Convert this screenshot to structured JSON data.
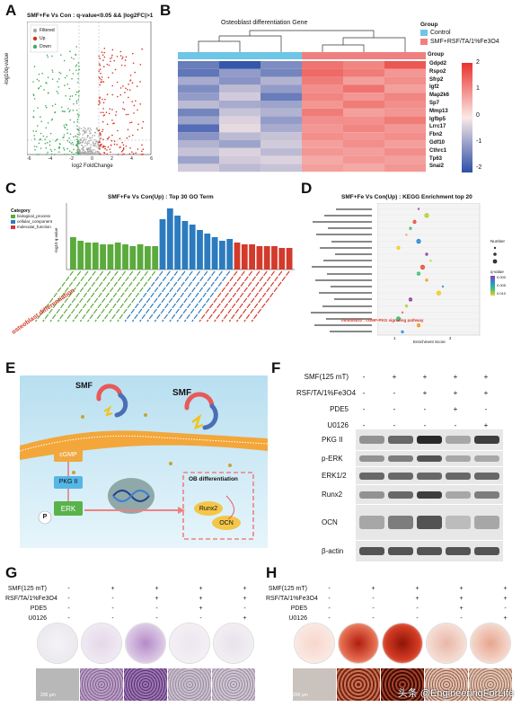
{
  "panels": {
    "a": "A",
    "b": "B",
    "c": "C",
    "d": "D",
    "e": "E",
    "f": "F",
    "g": "G",
    "h": "H"
  },
  "colors": {
    "up": "#d7301f",
    "down": "#41ab5d",
    "filtered": "#aaaaaa",
    "control": "#6ec6e6",
    "treat": "#f08080",
    "heat_high": "#e8332e",
    "heat_low": "#2b4fa8",
    "bar_green": "#5aaa3c",
    "bar_blue": "#2c7bbf",
    "bar_red": "#d33a2c"
  },
  "volcano": {
    "title": "SMF+Fe Vs Con : q-value<0.05 && |log2FC|>1",
    "ylabel": "-log10q-value",
    "xlabel": "log2 FoldChange",
    "xticks": [
      "-6",
      "-4",
      "-2",
      "0",
      "2",
      "4",
      "6"
    ],
    "legend": [
      "Filtered",
      "Up",
      "Down"
    ]
  },
  "heatmap": {
    "title": "Osteoblast differentiation Gene",
    "group_title": "Group",
    "legend": [
      "Control",
      "SMF+RSF/TA/1%Fe3O4"
    ],
    "row_group_label": "Group",
    "genes": [
      "Gdpd2",
      "Rspo2",
      "Sfrp2",
      "Igf2",
      "Map2k6",
      "Sp7",
      "Mmp13",
      "Igfbp5",
      "Lrrc17",
      "Fbn2",
      "Gdf10",
      "Cthrc1",
      "Tp63",
      "Snai2"
    ],
    "scale_ticks": [
      "2",
      "1",
      "0",
      "-1",
      "-2"
    ],
    "values": [
      [
        -1.4,
        -1.9,
        -1.2,
        1.3,
        1.1,
        1.6
      ],
      [
        -1.5,
        -1.0,
        -1.3,
        1.4,
        1.2,
        0.9
      ],
      [
        -0.8,
        -1.1,
        -0.7,
        1.2,
        0.8,
        1.0
      ],
      [
        -1.2,
        -0.6,
        -1.0,
        1.0,
        1.3,
        0.8
      ],
      [
        -1.0,
        -0.4,
        -1.4,
        1.1,
        0.9,
        1.1
      ],
      [
        -0.6,
        -0.8,
        -0.9,
        0.9,
        1.2,
        1.0
      ],
      [
        -1.3,
        -0.5,
        -0.7,
        1.2,
        0.8,
        0.9
      ],
      [
        -0.9,
        -0.3,
        -1.0,
        1.0,
        1.0,
        1.2
      ],
      [
        -1.6,
        -0.2,
        -0.8,
        0.9,
        1.1,
        0.9
      ],
      [
        -1.1,
        -0.6,
        -0.5,
        1.0,
        0.9,
        1.0
      ],
      [
        -0.7,
        -0.9,
        -0.4,
        0.8,
        1.0,
        0.8
      ],
      [
        -0.5,
        -0.3,
        -0.6,
        0.9,
        0.8,
        1.0
      ],
      [
        -0.9,
        -0.4,
        -0.3,
        0.7,
        0.9,
        0.8
      ],
      [
        -0.4,
        -0.6,
        -0.5,
        0.8,
        0.7,
        0.9
      ]
    ]
  },
  "chart_data": [
    {
      "type": "bar",
      "title": "SMF+Fe Vs Con(Up) : Top 30 GO Term",
      "ylabel": "-log10 q-value",
      "legend_title": "Category",
      "legend": [
        "biological_process",
        "cellular_component",
        "molecular_function"
      ],
      "highlight": "osteoblast differentiation",
      "series": [
        {
          "name": "biological_process",
          "values": [
            1.8,
            1.6,
            1.5,
            1.5,
            1.4,
            1.4,
            1.5,
            1.4,
            1.3,
            1.4,
            1.3,
            1.3
          ]
        },
        {
          "name": "cellular_component",
          "values": [
            2.8,
            3.4,
            3.0,
            2.7,
            2.5,
            2.2,
            2.0,
            1.8,
            1.6,
            1.7
          ]
        },
        {
          "name": "molecular_function",
          "values": [
            1.5,
            1.4,
            1.4,
            1.3,
            1.3,
            1.3,
            1.2,
            1.2
          ]
        }
      ]
    },
    {
      "type": "scatter",
      "title": "SMF+Fe Vs Con(Up) : KEGG Enrichment top 20",
      "xlabel": "Enrichment Score",
      "highlight": "mmu04022 : cGMP-PKG signaling pathway",
      "size_legend_title": "Number",
      "color_legend_title": "q-value",
      "color_legend_ticks": [
        "0.000",
        "0.005",
        "0.010"
      ],
      "x_ticks": [
        "1",
        "2"
      ],
      "points": [
        {
          "x": 1.2,
          "y": 20
        },
        {
          "x": 1.3,
          "y": 19
        },
        {
          "x": 1.15,
          "y": 18
        },
        {
          "x": 1.1,
          "y": 17
        },
        {
          "x": 1.05,
          "y": 16
        },
        {
          "x": 1.2,
          "y": 15
        },
        {
          "x": 0.95,
          "y": 14
        },
        {
          "x": 1.3,
          "y": 13
        },
        {
          "x": 1.35,
          "y": 12
        },
        {
          "x": 1.25,
          "y": 11
        },
        {
          "x": 1.2,
          "y": 10
        },
        {
          "x": 1.3,
          "y": 9
        },
        {
          "x": 1.5,
          "y": 8
        },
        {
          "x": 1.45,
          "y": 7
        },
        {
          "x": 1.1,
          "y": 6
        },
        {
          "x": 1.05,
          "y": 5
        },
        {
          "x": 1.0,
          "y": 4
        },
        {
          "x": 0.95,
          "y": 3
        },
        {
          "x": 1.2,
          "y": 2
        },
        {
          "x": 1.0,
          "y": 1
        }
      ]
    }
  ],
  "schematic": {
    "smf1": "SMF",
    "smf2": "SMF",
    "cgmp": "cGMP",
    "pkg": "PKG II",
    "erk": "ERK",
    "p": "P",
    "ob_title": "OB differentiation",
    "runx2": "Runx2",
    "ocn": "OCN"
  },
  "western": {
    "conditions": [
      "SMF(125 mT)",
      "RSF/TA/1%Fe3O4",
      "PDE5",
      "U0126"
    ],
    "signs": [
      [
        "-",
        "+",
        "+",
        "+",
        "+"
      ],
      [
        "-",
        "-",
        "+",
        "+",
        "+"
      ],
      [
        "-",
        "-",
        "-",
        "+",
        "-"
      ],
      [
        "-",
        "-",
        "-",
        "-",
        "+"
      ]
    ],
    "bands": [
      "PKG II",
      "p-ERK",
      "ERK1/2",
      "Runx2",
      "OCN",
      "β-actin"
    ]
  },
  "stain_g": {
    "conditions": [
      "SMF(125 mT)",
      "RSF/TA/1%Fe3O4",
      "PDE5",
      "U0126"
    ],
    "signs": [
      [
        "-",
        "+",
        "+",
        "+",
        "+"
      ],
      [
        "-",
        "-",
        "+",
        "+",
        "+"
      ],
      [
        "-",
        "-",
        "-",
        "+",
        "-"
      ],
      [
        "-",
        "-",
        "-",
        "-",
        "+"
      ]
    ],
    "scalebar": "200 μm"
  },
  "stain_h": {
    "conditions": [
      "SMF(125 mT)",
      "RSF/TA/1%Fe3O4",
      "PDE5",
      "U0126"
    ],
    "signs": [
      [
        "-",
        "+",
        "+",
        "+",
        "+"
      ],
      [
        "-",
        "-",
        "+",
        "+",
        "+"
      ],
      [
        "-",
        "-",
        "-",
        "+",
        "-"
      ],
      [
        "-",
        "-",
        "-",
        "-",
        "+"
      ]
    ],
    "scalebar": "200 μm"
  },
  "watermark": "头条 @EngineeringForLife"
}
